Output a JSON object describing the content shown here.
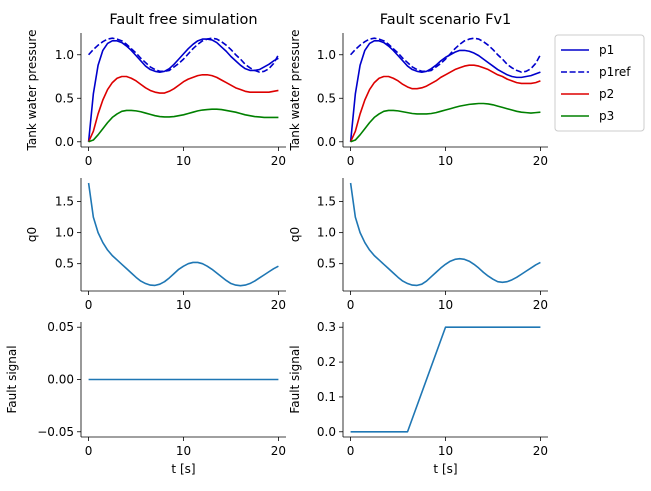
{
  "figure": {
    "legend": {
      "placement": "right of top-right subplot",
      "entries": [
        {
          "label": "p1",
          "color": "#0000cc",
          "dash": "solid"
        },
        {
          "label": "p1ref",
          "color": "#0000cc",
          "dash": "dashed"
        },
        {
          "label": "p2",
          "color": "#dd0000",
          "dash": "solid"
        },
        {
          "label": "p3",
          "color": "#008000",
          "dash": "solid"
        }
      ]
    }
  },
  "chart_data": [
    {
      "id": "pressure-free",
      "type": "line",
      "title": "Fault free simulation",
      "xlabel": "",
      "ylabel": "Tank water pressure",
      "xlim": [
        -0.8,
        20.8
      ],
      "ylim": [
        -0.06,
        1.25
      ],
      "xticks": [
        0,
        10,
        20
      ],
      "yticks": [
        0.0,
        0.5,
        1.0
      ],
      "ytick_labels": [
        "0.0",
        "0.5",
        "1.0"
      ],
      "grid": false,
      "series": [
        {
          "name": "p1",
          "color": "#0000cc",
          "dash": "solid",
          "x": [
            0,
            0.5,
            1,
            1.5,
            2,
            2.5,
            3,
            3.5,
            4,
            4.5,
            5,
            5.5,
            6,
            6.5,
            7,
            7.5,
            8,
            8.5,
            9,
            9.5,
            10,
            10.5,
            11,
            11.5,
            12,
            12.5,
            13,
            13.5,
            14,
            14.5,
            15,
            15.5,
            16,
            16.5,
            17,
            17.5,
            18,
            18.5,
            19,
            19.5,
            20
          ],
          "y": [
            0.0,
            0.55,
            0.88,
            1.05,
            1.13,
            1.16,
            1.16,
            1.14,
            1.1,
            1.05,
            0.99,
            0.93,
            0.87,
            0.83,
            0.81,
            0.8,
            0.81,
            0.84,
            0.89,
            0.95,
            1.01,
            1.07,
            1.12,
            1.16,
            1.18,
            1.18,
            1.17,
            1.14,
            1.09,
            1.04,
            0.98,
            0.93,
            0.88,
            0.84,
            0.82,
            0.82,
            0.83,
            0.86,
            0.89,
            0.93,
            0.96
          ]
        },
        {
          "name": "p1ref",
          "color": "#0000cc",
          "dash": "dashed",
          "x": [
            0,
            0.5,
            1,
            1.5,
            2,
            2.5,
            3,
            3.5,
            4,
            4.5,
            5,
            5.5,
            6,
            6.5,
            7,
            7.5,
            8,
            8.5,
            9,
            9.5,
            10,
            10.5,
            11,
            11.5,
            12,
            12.5,
            13,
            13.5,
            14,
            14.5,
            15,
            15.5,
            16,
            16.5,
            17,
            17.5,
            18,
            18.5,
            19,
            19.5,
            20
          ],
          "y": [
            1.0,
            1.06,
            1.11,
            1.15,
            1.18,
            1.19,
            1.18,
            1.16,
            1.12,
            1.07,
            1.02,
            0.96,
            0.91,
            0.86,
            0.83,
            0.81,
            0.81,
            0.82,
            0.86,
            0.9,
            0.95,
            1.01,
            1.07,
            1.12,
            1.16,
            1.18,
            1.19,
            1.18,
            1.15,
            1.11,
            1.06,
            1.0,
            0.95,
            0.89,
            0.85,
            0.82,
            0.8,
            0.81,
            0.84,
            0.9,
            1.0
          ]
        },
        {
          "name": "p2",
          "color": "#dd0000",
          "dash": "solid",
          "x": [
            0,
            0.5,
            1,
            1.5,
            2,
            2.5,
            3,
            3.5,
            4,
            4.5,
            5,
            5.5,
            6,
            6.5,
            7,
            7.5,
            8,
            8.5,
            9,
            9.5,
            10,
            10.5,
            11,
            11.5,
            12,
            12.5,
            13,
            13.5,
            14,
            14.5,
            15,
            15.5,
            16,
            16.5,
            17,
            17.5,
            18,
            18.5,
            19,
            19.5,
            20
          ],
          "y": [
            0.0,
            0.12,
            0.32,
            0.48,
            0.6,
            0.68,
            0.73,
            0.75,
            0.75,
            0.73,
            0.7,
            0.66,
            0.62,
            0.59,
            0.57,
            0.56,
            0.56,
            0.58,
            0.61,
            0.65,
            0.69,
            0.72,
            0.74,
            0.76,
            0.77,
            0.77,
            0.76,
            0.74,
            0.71,
            0.68,
            0.65,
            0.62,
            0.6,
            0.58,
            0.57,
            0.57,
            0.57,
            0.57,
            0.57,
            0.58,
            0.59
          ]
        },
        {
          "name": "p3",
          "color": "#008000",
          "dash": "solid",
          "x": [
            0,
            0.5,
            1,
            1.5,
            2,
            2.5,
            3,
            3.5,
            4,
            4.5,
            5,
            5.5,
            6,
            6.5,
            7,
            7.5,
            8,
            8.5,
            9,
            9.5,
            10,
            10.5,
            11,
            11.5,
            12,
            12.5,
            13,
            13.5,
            14,
            14.5,
            15,
            15.5,
            16,
            16.5,
            17,
            17.5,
            18,
            18.5,
            19,
            19.5,
            20
          ],
          "y": [
            0.0,
            0.02,
            0.08,
            0.15,
            0.22,
            0.28,
            0.32,
            0.35,
            0.36,
            0.36,
            0.355,
            0.345,
            0.33,
            0.315,
            0.3,
            0.29,
            0.285,
            0.285,
            0.29,
            0.3,
            0.31,
            0.325,
            0.34,
            0.355,
            0.365,
            0.37,
            0.375,
            0.375,
            0.37,
            0.36,
            0.35,
            0.34,
            0.325,
            0.31,
            0.3,
            0.29,
            0.285,
            0.28,
            0.28,
            0.28,
            0.28
          ]
        }
      ]
    },
    {
      "id": "pressure-fault",
      "type": "line",
      "title": "Fault scenario Fv1",
      "xlabel": "",
      "ylabel": "Tank water pressure",
      "xlim": [
        -0.8,
        20.8
      ],
      "ylim": [
        -0.06,
        1.25
      ],
      "xticks": [
        0,
        10,
        20
      ],
      "yticks": [
        0.0,
        0.5,
        1.0
      ],
      "ytick_labels": [
        "0.0",
        "0.5",
        "1.0"
      ],
      "grid": false,
      "series": [
        {
          "name": "p1",
          "color": "#0000cc",
          "dash": "solid",
          "x": [
            0,
            0.5,
            1,
            1.5,
            2,
            2.5,
            3,
            3.5,
            4,
            4.5,
            5,
            5.5,
            6,
            6.5,
            7,
            7.5,
            8,
            8.5,
            9,
            9.5,
            10,
            10.5,
            11,
            11.5,
            12,
            12.5,
            13,
            13.5,
            14,
            14.5,
            15,
            15.5,
            16,
            16.5,
            17,
            17.5,
            18,
            18.5,
            19,
            19.5,
            20
          ],
          "y": [
            0.0,
            0.55,
            0.88,
            1.05,
            1.13,
            1.16,
            1.16,
            1.14,
            1.1,
            1.05,
            0.99,
            0.93,
            0.87,
            0.83,
            0.81,
            0.8,
            0.81,
            0.84,
            0.88,
            0.93,
            0.97,
            1.0,
            1.03,
            1.05,
            1.05,
            1.04,
            1.02,
            0.99,
            0.95,
            0.91,
            0.87,
            0.83,
            0.8,
            0.77,
            0.75,
            0.74,
            0.74,
            0.75,
            0.76,
            0.78,
            0.8
          ]
        },
        {
          "name": "p1ref",
          "color": "#0000cc",
          "dash": "dashed",
          "x": [
            0,
            0.5,
            1,
            1.5,
            2,
            2.5,
            3,
            3.5,
            4,
            4.5,
            5,
            5.5,
            6,
            6.5,
            7,
            7.5,
            8,
            8.5,
            9,
            9.5,
            10,
            10.5,
            11,
            11.5,
            12,
            12.5,
            13,
            13.5,
            14,
            14.5,
            15,
            15.5,
            16,
            16.5,
            17,
            17.5,
            18,
            18.5,
            19,
            19.5,
            20
          ],
          "y": [
            1.0,
            1.06,
            1.11,
            1.15,
            1.18,
            1.19,
            1.18,
            1.16,
            1.12,
            1.07,
            1.02,
            0.96,
            0.91,
            0.86,
            0.83,
            0.81,
            0.81,
            0.82,
            0.86,
            0.9,
            0.95,
            1.01,
            1.07,
            1.12,
            1.16,
            1.18,
            1.19,
            1.18,
            1.15,
            1.11,
            1.06,
            1.0,
            0.95,
            0.89,
            0.85,
            0.82,
            0.8,
            0.81,
            0.84,
            0.9,
            1.0
          ]
        },
        {
          "name": "p2",
          "color": "#dd0000",
          "dash": "solid",
          "x": [
            0,
            0.5,
            1,
            1.5,
            2,
            2.5,
            3,
            3.5,
            4,
            4.5,
            5,
            5.5,
            6,
            6.5,
            7,
            7.5,
            8,
            8.5,
            9,
            9.5,
            10,
            10.5,
            11,
            11.5,
            12,
            12.5,
            13,
            13.5,
            14,
            14.5,
            15,
            15.5,
            16,
            16.5,
            17,
            17.5,
            18,
            18.5,
            19,
            19.5,
            20
          ],
          "y": [
            0.0,
            0.12,
            0.32,
            0.48,
            0.6,
            0.68,
            0.73,
            0.75,
            0.75,
            0.73,
            0.7,
            0.66,
            0.63,
            0.61,
            0.61,
            0.62,
            0.64,
            0.67,
            0.7,
            0.74,
            0.77,
            0.8,
            0.83,
            0.85,
            0.87,
            0.88,
            0.88,
            0.87,
            0.85,
            0.83,
            0.8,
            0.77,
            0.75,
            0.72,
            0.7,
            0.68,
            0.67,
            0.67,
            0.67,
            0.68,
            0.7
          ]
        },
        {
          "name": "p3",
          "color": "#008000",
          "dash": "solid",
          "x": [
            0,
            0.5,
            1,
            1.5,
            2,
            2.5,
            3,
            3.5,
            4,
            4.5,
            5,
            5.5,
            6,
            6.5,
            7,
            7.5,
            8,
            8.5,
            9,
            9.5,
            10,
            10.5,
            11,
            11.5,
            12,
            12.5,
            13,
            13.5,
            14,
            14.5,
            15,
            15.5,
            16,
            16.5,
            17,
            17.5,
            18,
            18.5,
            19,
            19.5,
            20
          ],
          "y": [
            0.0,
            0.02,
            0.08,
            0.15,
            0.22,
            0.28,
            0.32,
            0.35,
            0.36,
            0.36,
            0.355,
            0.345,
            0.335,
            0.325,
            0.32,
            0.32,
            0.32,
            0.325,
            0.335,
            0.35,
            0.365,
            0.38,
            0.395,
            0.41,
            0.42,
            0.43,
            0.435,
            0.44,
            0.44,
            0.435,
            0.425,
            0.41,
            0.395,
            0.38,
            0.365,
            0.35,
            0.34,
            0.335,
            0.33,
            0.335,
            0.34
          ]
        }
      ]
    },
    {
      "id": "q0-free",
      "type": "line",
      "title": "",
      "xlabel": "",
      "ylabel": "q0",
      "xlim": [
        -0.8,
        20.8
      ],
      "ylim": [
        0.06,
        1.88
      ],
      "xticks": [
        0,
        10,
        20
      ],
      "yticks": [
        0.5,
        1.0,
        1.5
      ],
      "ytick_labels": [
        "0.5",
        "1.0",
        "1.5"
      ],
      "grid": false,
      "series": [
        {
          "name": "",
          "color": "#1f77b4",
          "dash": "solid",
          "x": [
            0,
            0.5,
            1,
            1.5,
            2,
            2.5,
            3,
            3.5,
            4,
            4.5,
            5,
            5.5,
            6,
            6.5,
            7,
            7.5,
            8,
            8.5,
            9,
            9.5,
            10,
            10.5,
            11,
            11.5,
            12,
            12.5,
            13,
            13.5,
            14,
            14.5,
            15,
            15.5,
            16,
            16.5,
            17,
            17.5,
            18,
            18.5,
            19,
            19.5,
            20
          ],
          "y": [
            1.8,
            1.25,
            1.0,
            0.84,
            0.72,
            0.63,
            0.56,
            0.49,
            0.42,
            0.35,
            0.28,
            0.22,
            0.18,
            0.155,
            0.15,
            0.17,
            0.21,
            0.27,
            0.34,
            0.41,
            0.46,
            0.5,
            0.52,
            0.52,
            0.5,
            0.46,
            0.41,
            0.35,
            0.29,
            0.23,
            0.18,
            0.155,
            0.145,
            0.155,
            0.18,
            0.22,
            0.27,
            0.32,
            0.37,
            0.42,
            0.46
          ]
        }
      ]
    },
    {
      "id": "q0-fault",
      "type": "line",
      "title": "",
      "xlabel": "",
      "ylabel": "q0",
      "xlim": [
        -0.8,
        20.8
      ],
      "ylim": [
        0.06,
        1.88
      ],
      "xticks": [
        0,
        10,
        20
      ],
      "yticks": [
        0.5,
        1.0,
        1.5
      ],
      "ytick_labels": [
        "0.5",
        "1.0",
        "1.5"
      ],
      "grid": false,
      "series": [
        {
          "name": "",
          "color": "#1f77b4",
          "dash": "solid",
          "x": [
            0,
            0.5,
            1,
            1.5,
            2,
            2.5,
            3,
            3.5,
            4,
            4.5,
            5,
            5.5,
            6,
            6.5,
            7,
            7.5,
            8,
            8.5,
            9,
            9.5,
            10,
            10.5,
            11,
            11.5,
            12,
            12.5,
            13,
            13.5,
            14,
            14.5,
            15,
            15.5,
            16,
            16.5,
            17,
            17.5,
            18,
            18.5,
            19,
            19.5,
            20
          ],
          "y": [
            1.8,
            1.25,
            1.0,
            0.84,
            0.72,
            0.63,
            0.56,
            0.49,
            0.42,
            0.35,
            0.28,
            0.22,
            0.18,
            0.155,
            0.15,
            0.17,
            0.22,
            0.29,
            0.36,
            0.43,
            0.49,
            0.54,
            0.57,
            0.58,
            0.57,
            0.54,
            0.49,
            0.43,
            0.36,
            0.3,
            0.25,
            0.21,
            0.2,
            0.21,
            0.24,
            0.28,
            0.33,
            0.38,
            0.43,
            0.48,
            0.52
          ]
        }
      ]
    },
    {
      "id": "fault-free",
      "type": "line",
      "title": "",
      "xlabel": "t [s]",
      "ylabel": "Fault signal",
      "xlim": [
        -0.8,
        20.8
      ],
      "ylim": [
        -0.055,
        0.055
      ],
      "xticks": [
        0,
        10,
        20
      ],
      "yticks": [
        -0.05,
        0.0,
        0.05
      ],
      "ytick_labels": [
        "−0.05",
        "0.00",
        "0.05"
      ],
      "grid": false,
      "series": [
        {
          "name": "",
          "color": "#1f77b4",
          "dash": "solid",
          "x": [
            0,
            20
          ],
          "y": [
            0,
            0
          ]
        }
      ]
    },
    {
      "id": "fault-fv1",
      "type": "line",
      "title": "",
      "xlabel": "t [s]",
      "ylabel": "Fault signal",
      "xlim": [
        -0.8,
        20.8
      ],
      "ylim": [
        -0.015,
        0.315
      ],
      "xticks": [
        0,
        10,
        20
      ],
      "yticks": [
        0.0,
        0.1,
        0.2,
        0.3
      ],
      "ytick_labels": [
        "0.0",
        "0.1",
        "0.2",
        "0.3"
      ],
      "grid": false,
      "series": [
        {
          "name": "",
          "color": "#1f77b4",
          "dash": "solid",
          "x": [
            0,
            6,
            10,
            20
          ],
          "y": [
            0,
            0,
            0.3,
            0.3
          ]
        }
      ]
    }
  ]
}
